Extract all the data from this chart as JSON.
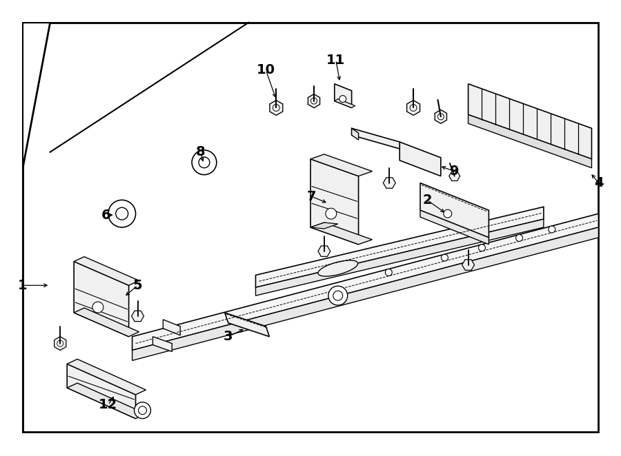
{
  "background_color": "#ffffff",
  "line_color": "#000000",
  "fig_width": 9.0,
  "fig_height": 6.62
}
